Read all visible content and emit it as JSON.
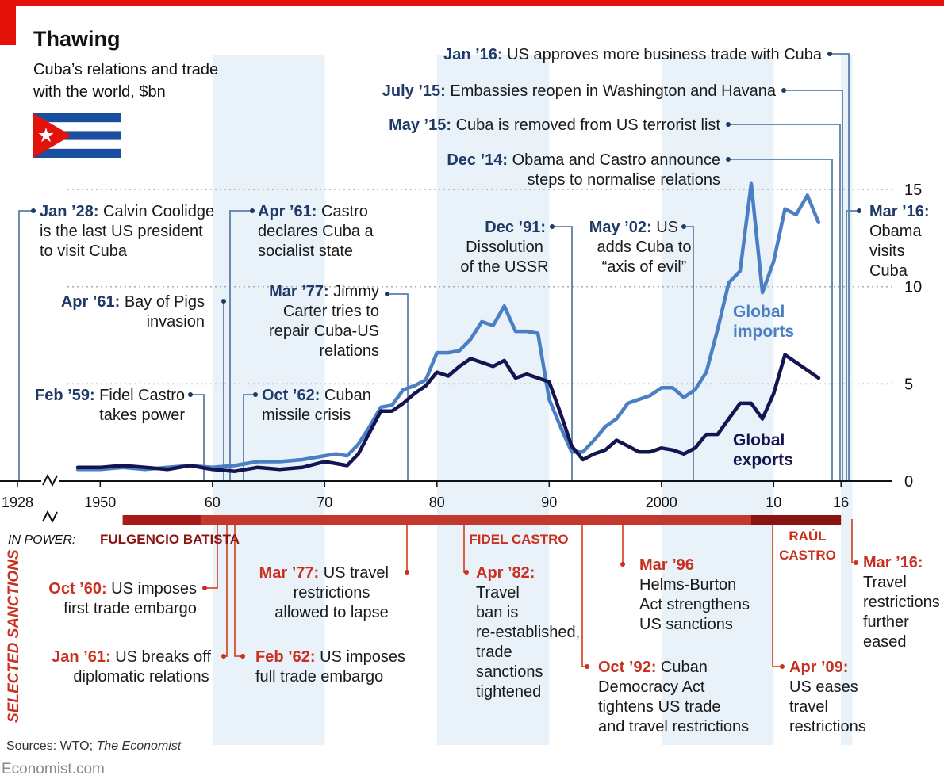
{
  "title": "Thawing",
  "subtitle_line1": "Cuba’s relations and trade",
  "subtitle_line2": "with the world, $bn",
  "source_label": "Sources: WTO; ",
  "source_italic": "The Economist",
  "brand": "Economist.com",
  "in_power_label": "IN POWER:",
  "sanctions_label": "SELECTED SANCTIONS",
  "leaders": [
    {
      "name": "FULGENCIO BATISTA",
      "start": 1952,
      "end": 1959,
      "color": "#a81a19"
    },
    {
      "name": "FIDEL CASTRO",
      "start": 1959,
      "end": 2008,
      "color": "#c2382c"
    },
    {
      "name": "RAÚL",
      "name2": "CASTRO",
      "start": 2008,
      "end": 2016,
      "color": "#8a1412"
    }
  ],
  "chart_data": {
    "type": "line",
    "ylim": [
      0,
      15
    ],
    "y_ticks": [
      0,
      5,
      10,
      15
    ],
    "x_ticks": [
      "1928",
      "1950",
      "60",
      "70",
      "80",
      "90",
      "2000",
      "10",
      "16"
    ],
    "x_tick_years": [
      1928,
      1950,
      1960,
      1970,
      1980,
      1990,
      2000,
      2010,
      2016
    ],
    "series": [
      {
        "name": "Global imports",
        "label_line1": "Global",
        "label_line2": "imports",
        "color": "#4a7fc4",
        "x": [
          1948,
          1950,
          1952,
          1954,
          1956,
          1958,
          1960,
          1962,
          1964,
          1966,
          1968,
          1970,
          1971,
          1972,
          1973,
          1974,
          1975,
          1976,
          1977,
          1978,
          1979,
          1980,
          1981,
          1982,
          1983,
          1984,
          1985,
          1986,
          1987,
          1988,
          1989,
          1990,
          1991,
          1992,
          1993,
          1994,
          1995,
          1996,
          1997,
          1998,
          1999,
          2000,
          2001,
          2002,
          2003,
          2004,
          2005,
          2006,
          2007,
          2008,
          2009,
          2010,
          2011,
          2012,
          2013,
          2014
        ],
        "y": [
          0.6,
          0.6,
          0.7,
          0.6,
          0.7,
          0.8,
          0.7,
          0.8,
          1.0,
          1.0,
          1.1,
          1.3,
          1.4,
          1.3,
          1.9,
          2.8,
          3.8,
          3.9,
          4.7,
          4.9,
          5.2,
          6.6,
          6.6,
          6.7,
          7.3,
          8.2,
          8.0,
          9.0,
          7.7,
          7.7,
          7.6,
          4.2,
          2.8,
          1.5,
          1.5,
          2.1,
          2.8,
          3.2,
          4.0,
          4.2,
          4.4,
          4.8,
          4.8,
          4.3,
          4.7,
          5.6,
          7.8,
          10.2,
          10.8,
          15.3,
          9.7,
          11.3,
          14.0,
          13.7,
          14.7,
          13.3
        ]
      },
      {
        "name": "Global exports",
        "label_line1": "Global",
        "label_line2": "exports",
        "color": "#141450",
        "x": [
          1948,
          1950,
          1952,
          1954,
          1956,
          1958,
          1960,
          1962,
          1964,
          1966,
          1968,
          1970,
          1971,
          1972,
          1973,
          1974,
          1975,
          1976,
          1977,
          1978,
          1979,
          1980,
          1981,
          1982,
          1983,
          1984,
          1985,
          1986,
          1987,
          1988,
          1989,
          1990,
          1991,
          1992,
          1993,
          1994,
          1995,
          1996,
          1997,
          1998,
          1999,
          2000,
          2001,
          2002,
          2003,
          2004,
          2005,
          2006,
          2007,
          2008,
          2009,
          2010,
          2011,
          2012,
          2013,
          2014
        ],
        "y": [
          0.7,
          0.7,
          0.8,
          0.7,
          0.6,
          0.8,
          0.6,
          0.5,
          0.7,
          0.6,
          0.7,
          1.0,
          0.9,
          0.8,
          1.4,
          2.5,
          3.6,
          3.6,
          4.0,
          4.5,
          4.9,
          5.6,
          5.4,
          5.9,
          6.3,
          6.1,
          5.9,
          6.2,
          5.3,
          5.5,
          5.3,
          5.1,
          3.5,
          1.8,
          1.1,
          1.4,
          1.6,
          2.1,
          1.8,
          1.5,
          1.5,
          1.7,
          1.6,
          1.4,
          1.7,
          2.4,
          2.4,
          3.2,
          4.0,
          4.0,
          3.2,
          4.5,
          6.5,
          6.1,
          5.7,
          5.3
        ]
      }
    ]
  },
  "events_top": [
    {
      "bold": "Jan ’28:",
      "rest": "Calvin Coolidge",
      "more": [
        "is the last US president",
        "to visit Cuba"
      ],
      "year": 1928
    },
    {
      "bold": "Apr ’61:",
      "rest": "Bay of Pigs",
      "more": [
        "invasion"
      ],
      "year": 1961
    },
    {
      "bold": "Apr ’61:",
      "rest": "Castro",
      "more": [
        "declares Cuba a",
        "socialist state"
      ],
      "year": 1961
    },
    {
      "bold": "Feb ’59:",
      "rest": "Fidel Castro",
      "more": [
        "takes power"
      ],
      "year": 1959
    },
    {
      "bold": "Oct ’62:",
      "rest": "Cuban",
      "more": [
        "missile crisis"
      ],
      "year": 1962
    },
    {
      "bold": "Mar ’77:",
      "rest": "Jimmy",
      "more": [
        "Carter tries to",
        "repair Cuba-US",
        "relations"
      ],
      "year": 1977
    },
    {
      "bold": "Dec ’91:",
      "rest": "",
      "more": [
        "Dissolution",
        "of the USSR"
      ],
      "year": 1991
    },
    {
      "bold": "May ’02:",
      "rest": "US",
      "more": [
        "adds Cuba to",
        "“axis of evil”"
      ],
      "year": 2002
    },
    {
      "bold": "Dec ’14:",
      "rest": "Obama and Castro announce",
      "more": [
        "steps to normalise relations"
      ],
      "year": 2014
    },
    {
      "bold": "May ’15:",
      "rest": "Cuba is removed from US terrorist list",
      "more": [],
      "year": 2015
    },
    {
      "bold": "July ’15:",
      "rest": "Embassies reopen in Washington and Havana",
      "more": [],
      "year": 2015
    },
    {
      "bold": "Jan ’16:",
      "rest": "US approves more business trade with Cuba",
      "more": [],
      "year": 2016
    },
    {
      "bold": "Mar ’16:",
      "rest": "",
      "more": [
        "Obama",
        "visits",
        "Cuba"
      ],
      "year": 2016
    }
  ],
  "events_bottom": [
    {
      "bold": "Oct ’60:",
      "rest": "US imposes",
      "more": [
        "first trade embargo"
      ],
      "year": 1960
    },
    {
      "bold": "Jan ’61:",
      "rest": "US breaks off",
      "more": [
        "diplomatic relations"
      ],
      "year": 1961
    },
    {
      "bold": "Mar ’77:",
      "rest": "US travel",
      "more": [
        "restrictions",
        "allowed to lapse"
      ],
      "year": 1977
    },
    {
      "bold": "Feb ’62:",
      "rest": "US imposes",
      "more": [
        "full trade embargo"
      ],
      "year": 1962
    },
    {
      "bold": "Apr ’82:",
      "rest": "",
      "more": [
        "Travel",
        "ban is",
        "re-established,",
        "trade",
        "sanctions",
        "tightened"
      ],
      "year": 1982
    },
    {
      "bold": "Mar ’96",
      "rest": "",
      "more": [
        "Helms-Burton",
        "Act strengthens",
        "US sanctions"
      ],
      "year": 1996
    },
    {
      "bold": "Oct ’92:",
      "rest": "Cuban",
      "more": [
        "Democracy Act",
        "tightens US trade",
        "and travel restrictions"
      ],
      "year": 1992
    },
    {
      "bold": "Apr ’09:",
      "rest": "",
      "more": [
        "US eases",
        "travel",
        "restrictions"
      ],
      "year": 2009
    },
    {
      "bold": "Mar ’16:",
      "rest": "",
      "more": [
        "Travel",
        "restrictions",
        "further",
        "eased"
      ],
      "year": 2016
    }
  ],
  "colors": {
    "navy": "#1f3a66",
    "red": "#c9301f",
    "line_top": "#5c7fa8",
    "band": "#e9f1f9",
    "grid": "#aaaaaa"
  }
}
